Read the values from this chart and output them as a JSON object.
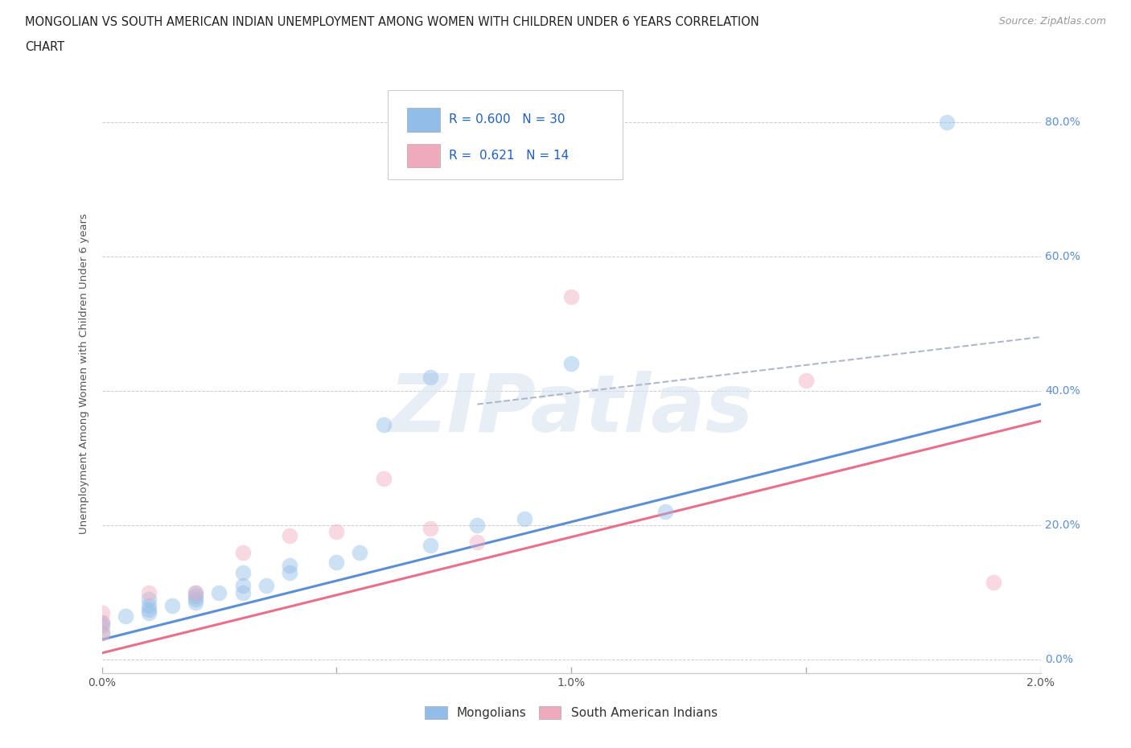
{
  "title_line1": "MONGOLIAN VS SOUTH AMERICAN INDIAN UNEMPLOYMENT AMONG WOMEN WITH CHILDREN UNDER 6 YEARS CORRELATION",
  "title_line2": "CHART",
  "source_text": "Source: ZipAtlas.com",
  "ylabel": "Unemployment Among Women with Children Under 6 years",
  "legend_blue_label": "Mongolians",
  "legend_pink_label": "South American Indians",
  "watermark": "ZIPatlas",
  "xlim": [
    0.0,
    0.02
  ],
  "ylim": [
    -0.02,
    0.87
  ],
  "xticks": [
    0.0,
    0.005,
    0.01,
    0.015,
    0.02
  ],
  "xticklabels_bottom": [
    "0.0%",
    "",
    "1.0%",
    "",
    "2.0%"
  ],
  "xticklabels_show": [
    true,
    false,
    true,
    false,
    true
  ],
  "yticks": [
    0.0,
    0.2,
    0.4,
    0.6,
    0.8
  ],
  "yticklabels_right": [
    "0.0%",
    "20.0%",
    "40.0%",
    "60.0%",
    "80.0%"
  ],
  "background_color": "#ffffff",
  "grid_color": "#cccccc",
  "blue_color": "#92bde8",
  "pink_color": "#f0aabe",
  "blue_line_color": "#5b8fd4",
  "pink_line_color": "#e8708a",
  "dashed_color": "#b0b8c8",
  "mongolian_points": [
    [
      0.0,
      0.055
    ],
    [
      0.0,
      0.05
    ],
    [
      0.0,
      0.04
    ],
    [
      0.0005,
      0.065
    ],
    [
      0.001,
      0.07
    ],
    [
      0.001,
      0.08
    ],
    [
      0.001,
      0.09
    ],
    [
      0.001,
      0.075
    ],
    [
      0.0015,
      0.08
    ],
    [
      0.002,
      0.09
    ],
    [
      0.002,
      0.085
    ],
    [
      0.002,
      0.095
    ],
    [
      0.002,
      0.1
    ],
    [
      0.0025,
      0.1
    ],
    [
      0.003,
      0.1
    ],
    [
      0.003,
      0.11
    ],
    [
      0.003,
      0.13
    ],
    [
      0.0035,
      0.11
    ],
    [
      0.004,
      0.13
    ],
    [
      0.004,
      0.14
    ],
    [
      0.005,
      0.145
    ],
    [
      0.0055,
      0.16
    ],
    [
      0.006,
      0.35
    ],
    [
      0.007,
      0.17
    ],
    [
      0.007,
      0.42
    ],
    [
      0.008,
      0.2
    ],
    [
      0.009,
      0.21
    ],
    [
      0.01,
      0.44
    ],
    [
      0.012,
      0.22
    ],
    [
      0.018,
      0.8
    ]
  ],
  "sam_indian_points": [
    [
      0.0,
      0.04
    ],
    [
      0.0,
      0.055
    ],
    [
      0.0,
      0.07
    ],
    [
      0.001,
      0.1
    ],
    [
      0.002,
      0.1
    ],
    [
      0.003,
      0.16
    ],
    [
      0.004,
      0.185
    ],
    [
      0.005,
      0.19
    ],
    [
      0.006,
      0.27
    ],
    [
      0.007,
      0.195
    ],
    [
      0.008,
      0.175
    ],
    [
      0.01,
      0.54
    ],
    [
      0.015,
      0.415
    ],
    [
      0.019,
      0.115
    ]
  ],
  "blue_trendline": [
    [
      0.0,
      0.03
    ],
    [
      0.02,
      0.38
    ]
  ],
  "pink_trendline": [
    [
      0.0,
      0.01
    ],
    [
      0.02,
      0.355
    ]
  ],
  "blue_dashed_trendline": [
    [
      0.008,
      0.38
    ],
    [
      0.02,
      0.48
    ]
  ]
}
